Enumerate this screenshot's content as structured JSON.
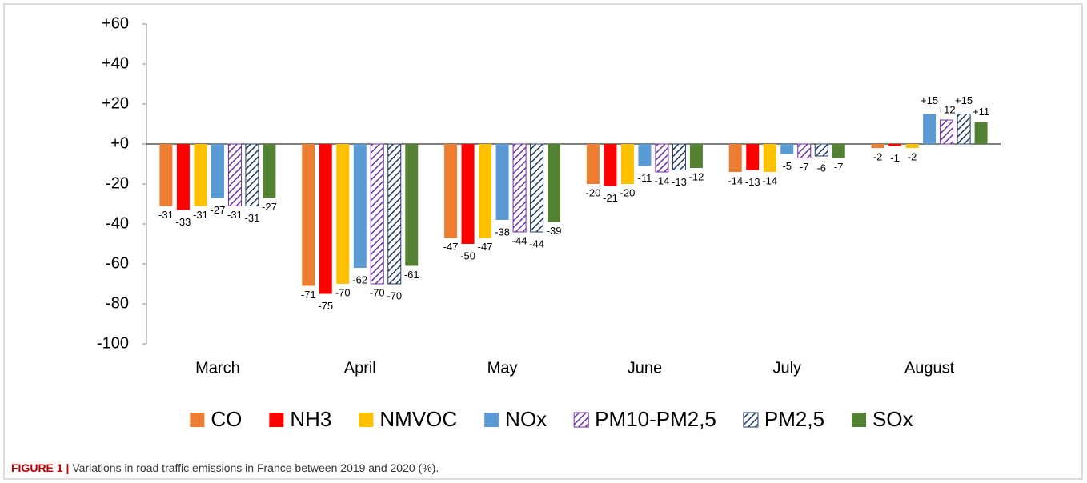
{
  "chart_data": {
    "type": "bar",
    "caption_label": "FIGURE 1 |",
    "caption": "Variations in road traffic emissions in France between 2019 and 2020 (%).",
    "categories": [
      "March",
      "April",
      "May",
      "June",
      "July",
      "August"
    ],
    "series": [
      {
        "name": "CO",
        "color": "#ed7d31",
        "values": [
          -31,
          -71,
          -47,
          -20,
          -14,
          -2
        ]
      },
      {
        "name": "NH3",
        "color": "#ff0000",
        "values": [
          -33,
          -75,
          -50,
          -21,
          -13,
          -1
        ]
      },
      {
        "name": "NMVOC",
        "color": "#ffc000",
        "values": [
          -31,
          -70,
          -47,
          -20,
          -14,
          -2
        ]
      },
      {
        "name": "NOx",
        "color": "#5b9bd5",
        "values": [
          -27,
          -62,
          -38,
          -11,
          -5,
          15
        ],
        "value_labels": [
          "-27",
          "-62",
          "-38",
          "-11",
          "-5",
          "+15"
        ]
      },
      {
        "name": "PM10-PM2,5",
        "color": "#7030a0",
        "pattern": "hatch",
        "values": [
          -31,
          -70,
          -44,
          -14,
          -7,
          12
        ],
        "value_labels": [
          "-31",
          "-70",
          "-44",
          "-14",
          "-7",
          "+12"
        ]
      },
      {
        "name": "PM2,5",
        "color": "#1f3864",
        "pattern": "hatch",
        "values": [
          -31,
          -70,
          -44,
          -13,
          -6,
          15
        ],
        "value_labels": [
          "-31",
          "-70",
          "-44",
          "-13",
          "-6",
          "+15"
        ]
      },
      {
        "name": "SOx",
        "color": "#548235",
        "values": [
          -27,
          -61,
          -39,
          -12,
          -7,
          11
        ],
        "value_labels": [
          "-27",
          "-61",
          "-39",
          "-12",
          "-7",
          "+11"
        ]
      }
    ],
    "ylim": [
      -100,
      60
    ],
    "yticks": [
      -100,
      -80,
      -60,
      -40,
      -20,
      {
        "value": 0,
        "label": "+0"
      },
      {
        "value": 20,
        "label": "+20"
      },
      {
        "value": 40,
        "label": "+40"
      },
      {
        "value": 60,
        "label": "+60"
      }
    ],
    "legend": "bottom"
  }
}
